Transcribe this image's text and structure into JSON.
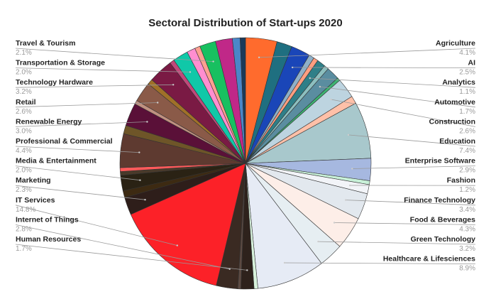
{
  "chart_data": {
    "type": "pie",
    "title": "Sectoral Distribution of Start-ups 2020",
    "legend_position": "labels-around-pie",
    "slices": [
      {
        "label": "Agriculture",
        "value_label": "4.1%",
        "value": 4.1,
        "color": "#ff6b2d",
        "labeled": true,
        "side": "right"
      },
      {
        "label": "",
        "value": 2.0,
        "color": "#1f6f80",
        "labeled": false
      },
      {
        "label": "AI",
        "value_label": "2.5%",
        "value": 2.5,
        "color": "#1a46b8",
        "labeled": true,
        "side": "right"
      },
      {
        "label": "",
        "value": 0.7,
        "color": "#8fb0c8",
        "labeled": false
      },
      {
        "label": "",
        "value": 0.6,
        "color": "#ff9e80",
        "labeled": false
      },
      {
        "label": "Analytics",
        "value_label": "1.1%",
        "value": 1.1,
        "color": "#2f7f88",
        "labeled": true,
        "side": "right"
      },
      {
        "label": "",
        "value": 0.6,
        "color": "#8cbfbf",
        "labeled": false
      },
      {
        "label": "Automotive",
        "value_label": "1.7%",
        "value": 1.7,
        "color": "#5a8da0",
        "labeled": true,
        "side": "right"
      },
      {
        "label": "",
        "value": 0.4,
        "color": "#3cb371",
        "labeled": false
      },
      {
        "label": "Construction",
        "value_label": "2.6%",
        "value": 2.6,
        "color": "#bdd4e0",
        "labeled": true,
        "side": "right"
      },
      {
        "label": "",
        "value": 1.0,
        "color": "#ffc0a8",
        "labeled": false
      },
      {
        "label": "Education",
        "value_label": "7.4%",
        "value": 7.4,
        "color": "#a8c8cc",
        "labeled": true,
        "side": "right"
      },
      {
        "label": "Enterprise Software",
        "value_label": "2.9%",
        "value": 2.9,
        "color": "#a6b8e0",
        "labeled": true,
        "side": "right"
      },
      {
        "label": "",
        "value": 0.5,
        "color": "#c8f0d8",
        "labeled": false
      },
      {
        "label": "Fashion",
        "value_label": "1.2%",
        "value": 1.2,
        "color": "#f2f4f8",
        "labeled": true,
        "side": "right"
      },
      {
        "label": "Finance Technology",
        "value_label": "3.4%",
        "value": 3.4,
        "color": "#e2e8ee",
        "labeled": true,
        "side": "right"
      },
      {
        "label": "Food & Beverages",
        "value_label": "4.3%",
        "value": 4.3,
        "color": "#fdeee8",
        "labeled": true,
        "side": "right"
      },
      {
        "label": "Green Technology",
        "value_label": "3.2%",
        "value": 3.2,
        "color": "#e6eef2",
        "labeled": true,
        "side": "right"
      },
      {
        "label": "Healthcare & Lifesciences",
        "value_label": "8.9%",
        "value": 8.9,
        "color": "#e6ebf5",
        "labeled": true,
        "side": "right"
      },
      {
        "label": "",
        "value": 0.5,
        "color": "#d8f2dc",
        "labeled": false
      },
      {
        "label": "Human Resources",
        "value_label": "1.7%",
        "value": 1.7,
        "color": "#2e221c",
        "labeled": true,
        "side": "left"
      },
      {
        "label": "",
        "value": 0.4,
        "color": "#5c4a42",
        "labeled": false
      },
      {
        "label": "Internet of Things",
        "value_label": "2.8%",
        "value": 2.8,
        "color": "#3a2a22",
        "labeled": true,
        "side": "left"
      },
      {
        "label": "IT Services",
        "value_label": "14.8%",
        "value": 14.8,
        "color": "#fc2128",
        "labeled": true,
        "side": "left"
      },
      {
        "label": "Marketing",
        "value_label": "2.3%",
        "value": 2.3,
        "color": "#2e1e1a",
        "labeled": true,
        "side": "left"
      },
      {
        "label": "",
        "value": 0.9,
        "color": "#3d2a12",
        "labeled": false
      },
      {
        "label": "Media & Entertainment",
        "value_label": "2.0%",
        "value": 2.0,
        "color": "#2a2214",
        "labeled": true,
        "side": "left"
      },
      {
        "label": "",
        "value": 0.5,
        "color": "#4a3a2a",
        "labeled": false
      },
      {
        "label": "",
        "value": 0.5,
        "color": "#ff5a5a",
        "labeled": false
      },
      {
        "label": "Professional & Commercial",
        "value_label": "4.4%",
        "value": 4.4,
        "color": "#5e3a30",
        "labeled": true,
        "side": "left"
      },
      {
        "label": "",
        "value": 1.1,
        "color": "#6e5528",
        "labeled": false
      },
      {
        "label": "Renewable Energy",
        "value_label": "3.0%",
        "value": 3.0,
        "color": "#5a1038",
        "labeled": true,
        "side": "left"
      },
      {
        "label": "",
        "value": 0.5,
        "color": "#c09080",
        "labeled": false
      },
      {
        "label": "Retail",
        "value_label": "2.6%",
        "value": 2.6,
        "color": "#8a5a48",
        "labeled": true,
        "side": "left"
      },
      {
        "label": "",
        "value": 0.7,
        "color": "#a07028",
        "labeled": false
      },
      {
        "label": "Technology Hardware",
        "value_label": "3.2%",
        "value": 3.2,
        "color": "#7a1a44",
        "labeled": true,
        "side": "left"
      },
      {
        "label": "",
        "value": 0.6,
        "color": "#c0487a",
        "labeled": false
      },
      {
        "label": "Transportation & Storage",
        "value_label": "2.0%",
        "value": 2.0,
        "color": "#10c8a8",
        "labeled": true,
        "side": "left"
      },
      {
        "label": "",
        "value": 1.1,
        "color": "#ff8ed0",
        "labeled": false
      },
      {
        "label": "",
        "value": 0.7,
        "color": "#ffa090",
        "labeled": false
      },
      {
        "label": "Travel & Tourism",
        "value_label": "2.1%",
        "value": 2.1,
        "color": "#18c060",
        "labeled": true,
        "side": "left"
      },
      {
        "label": "",
        "value": 2.2,
        "color": "#c02888",
        "labeled": false
      },
      {
        "label": "",
        "value": 1.0,
        "color": "#4a86c8",
        "labeled": false
      },
      {
        "label": "",
        "value": 0.7,
        "color": "#1a3a5a",
        "labeled": false
      }
    ]
  }
}
